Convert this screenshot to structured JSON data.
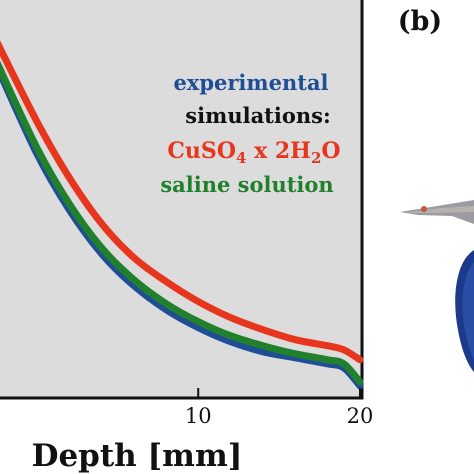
{
  "panel_label": "(b)",
  "chart_data": {
    "type": "line",
    "xlabel": "Depth [mm]",
    "ylabel": "",
    "title": "",
    "xlim": [
      -2.5,
      20
    ],
    "xticks": [
      10,
      20
    ],
    "x_tick_labels": [
      "10",
      "20"
    ],
    "legend": {
      "placement": "top-right",
      "entries": [
        {
          "label": "experimental",
          "color": "#1f4e96"
        },
        {
          "label": "simulations:",
          "color": "#111111"
        },
        {
          "label_parts": [
            "CuSO",
            "4",
            " x 2H",
            "2",
            "O"
          ],
          "color": "#e8361e"
        },
        {
          "label": "saline solution",
          "color": "#21802c"
        }
      ]
    },
    "series": [
      {
        "name": "experimental",
        "color": "#1f4e96",
        "x": [
          -2.5,
          0,
          2,
          4,
          6,
          8,
          10,
          12,
          14,
          16,
          18,
          19,
          20
        ],
        "y": [
          0.83,
          0.61,
          0.47,
          0.36,
          0.28,
          0.22,
          0.175,
          0.14,
          0.115,
          0.1,
          0.085,
          0.075,
          0.03
        ]
      },
      {
        "name": "saline solution",
        "color": "#21802c",
        "x": [
          -2.5,
          0,
          2,
          4,
          6,
          8,
          10,
          12,
          14,
          16,
          18,
          19,
          20
        ],
        "y": [
          0.84,
          0.625,
          0.485,
          0.375,
          0.295,
          0.235,
          0.19,
          0.155,
          0.13,
          0.11,
          0.095,
          0.085,
          0.04
        ]
      },
      {
        "name": "CuSO4 x 2H2O",
        "color": "#e8361e",
        "x": [
          -2.5,
          0,
          2,
          4,
          6,
          8,
          10,
          12,
          14,
          16,
          18,
          19,
          20
        ],
        "y": [
          0.89,
          0.69,
          0.55,
          0.435,
          0.35,
          0.29,
          0.24,
          0.2,
          0.17,
          0.145,
          0.13,
          0.12,
          0.095
        ]
      }
    ],
    "grid": false,
    "background": "#dcdcdc"
  },
  "right_panel": {
    "description_icon": "partial-3d-render"
  }
}
